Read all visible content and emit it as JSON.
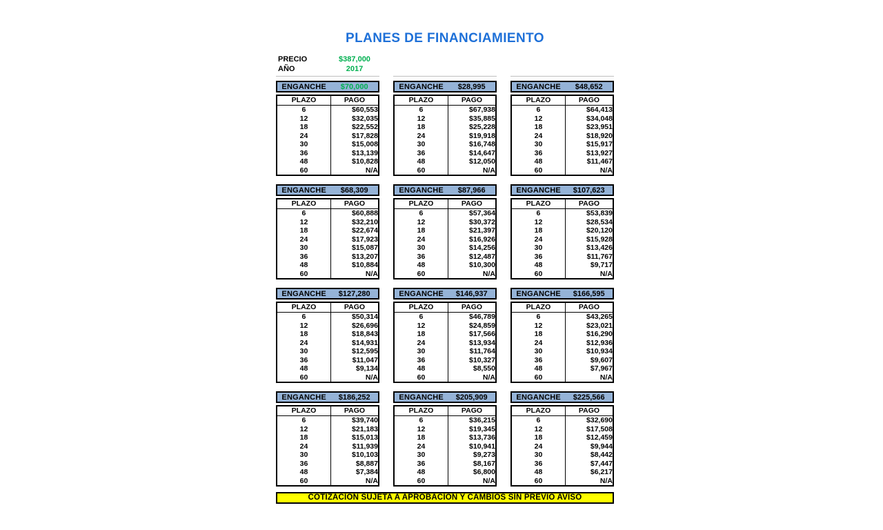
{
  "title": "PLANES DE FINANCIAMIENTO",
  "info": {
    "precio_label": "PRECIO",
    "precio_value": "$387,000",
    "anio_label": "AÑO",
    "anio_value": "2017"
  },
  "table_headers": {
    "enganche": "ENGANCHE",
    "plazo": "PLAZO",
    "pago": "PAGO"
  },
  "plazos": [
    "6",
    "12",
    "18",
    "24",
    "30",
    "36",
    "48",
    "60"
  ],
  "plans": [
    {
      "enganche": "$70,000",
      "highlight": true,
      "pagos": [
        "$60,553",
        "$32,035",
        "$22,552",
        "$17,828",
        "$15,008",
        "$13,139",
        "$10,828",
        "N/A"
      ]
    },
    {
      "enganche": "$28,995",
      "highlight": false,
      "pagos": [
        "$67,938",
        "$35,885",
        "$25,228",
        "$19,918",
        "$16,748",
        "$14,647",
        "$12,050",
        "N/A"
      ]
    },
    {
      "enganche": "$48,652",
      "highlight": false,
      "pagos": [
        "$64,413",
        "$34,048",
        "$23,951",
        "$18,920",
        "$15,917",
        "$13,927",
        "$11,467",
        "N/A"
      ]
    },
    {
      "enganche": "$68,309",
      "highlight": false,
      "pagos": [
        "$60,888",
        "$32,210",
        "$22,674",
        "$17,923",
        "$15,087",
        "$13,207",
        "$10,884",
        "N/A"
      ]
    },
    {
      "enganche": "$87,966",
      "highlight": false,
      "pagos": [
        "$57,364",
        "$30,372",
        "$21,397",
        "$16,926",
        "$14,256",
        "$12,487",
        "$10,300",
        "N/A"
      ]
    },
    {
      "enganche": "$107,623",
      "highlight": false,
      "pagos": [
        "$53,839",
        "$28,534",
        "$20,120",
        "$15,928",
        "$13,426",
        "$11,767",
        "$9,717",
        "N/A"
      ]
    },
    {
      "enganche": "$127,280",
      "highlight": false,
      "pagos": [
        "$50,314",
        "$26,696",
        "$18,843",
        "$14,931",
        "$12,595",
        "$11,047",
        "$9,134",
        "N/A"
      ]
    },
    {
      "enganche": "$146,937",
      "highlight": false,
      "pagos": [
        "$46,789",
        "$24,859",
        "$17,566",
        "$13,934",
        "$11,764",
        "$10,327",
        "$8,550",
        "N/A"
      ]
    },
    {
      "enganche": "$166,595",
      "highlight": false,
      "pagos": [
        "$43,265",
        "$23,021",
        "$16,290",
        "$12,936",
        "$10,934",
        "$9,607",
        "$7,967",
        "N/A"
      ]
    },
    {
      "enganche": "$186,252",
      "highlight": false,
      "pagos": [
        "$39,740",
        "$21,183",
        "$15,013",
        "$11,939",
        "$10,103",
        "$8,887",
        "$7,384",
        "N/A"
      ]
    },
    {
      "enganche": "$205,909",
      "highlight": false,
      "pagos": [
        "$36,215",
        "$19,345",
        "$13,736",
        "$10,941",
        "$9,273",
        "$8,167",
        "$6,800",
        "N/A"
      ]
    },
    {
      "enganche": "$225,566",
      "highlight": false,
      "pagos": [
        "$32,690",
        "$17,508",
        "$12,459",
        "$9,944",
        "$8,442",
        "$7,447",
        "$6,217",
        "N/A"
      ]
    }
  ],
  "footer": {
    "banner": "COTIZACION SUJETA A APROBACION Y CAMBIOS SIN PREVIO AVISO"
  },
  "colors": {
    "title_blue": "#1E70D8",
    "value_green": "#00B050",
    "enganche_header_fill": "#95B3D7",
    "banner_yellow": "#FFFF00"
  }
}
